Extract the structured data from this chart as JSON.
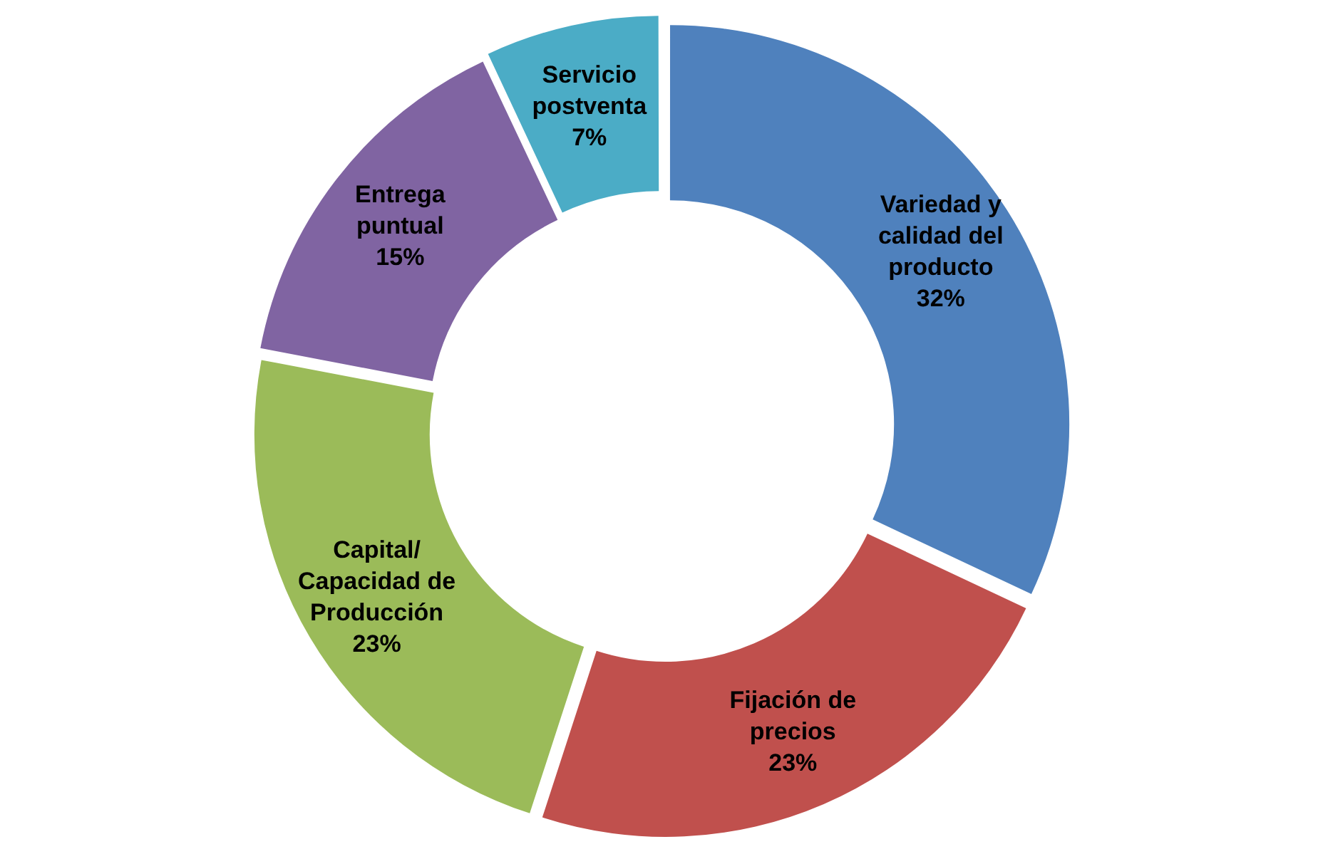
{
  "chart_data": {
    "type": "donut",
    "categories": [
      "Variedad y calidad del producto",
      "Fijación de precios",
      "Capital/ Capacidad de Producción",
      "Entrega puntual",
      "Servicio postventa"
    ],
    "values": [
      32,
      23,
      23,
      15,
      7
    ],
    "colors": [
      "#4f81bd",
      "#c0504d",
      "#9bbb59",
      "#8064a2",
      "#4bacc6"
    ],
    "value_labels": [
      "32%",
      "23%",
      "23%",
      "15%",
      "7%"
    ],
    "legend": false
  }
}
